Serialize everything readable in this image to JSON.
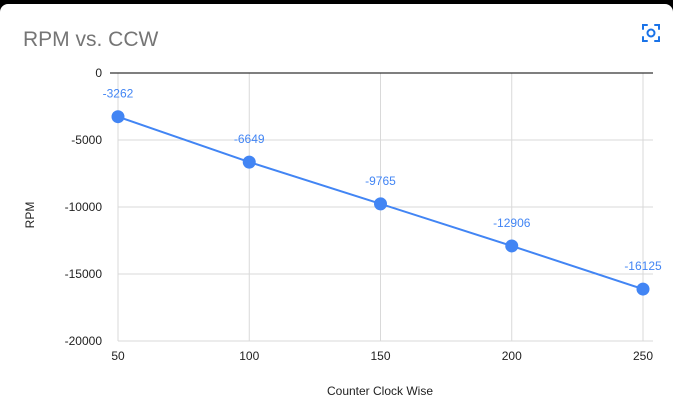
{
  "chart_data": {
    "type": "line",
    "title": "RPM vs. CCW",
    "xlabel": "Counter Clock Wise",
    "ylabel": "RPM",
    "x": [
      50,
      100,
      150,
      200,
      250
    ],
    "series": [
      {
        "values": [
          -3262,
          -6649,
          -9765,
          -12906,
          -16125
        ]
      }
    ],
    "data_labels": [
      "-3262",
      "-6649",
      "-9765",
      "-12906",
      "-16125"
    ],
    "x_ticks": [
      "50",
      "100",
      "150",
      "200",
      "250"
    ],
    "y_ticks": [
      "0",
      "-5000",
      "-10000",
      "-15000",
      "-20000"
    ],
    "xlim": [
      50,
      250
    ],
    "ylim": [
      -20000,
      0
    ],
    "grid": true,
    "legend": "none"
  },
  "colors": {
    "series": "#4285f4",
    "grid": "#d9d9d9",
    "axis": "#333333",
    "title": "#757575",
    "lens_icon": "#1a73e8"
  },
  "toolbar": {
    "icon": "lens-icon"
  }
}
